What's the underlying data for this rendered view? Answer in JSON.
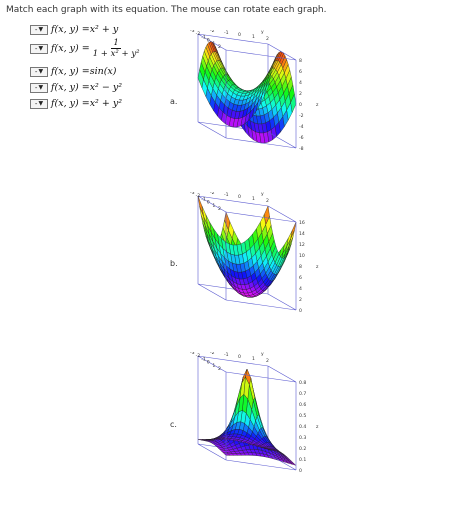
{
  "instructions": "Match each graph with its equation. The mouse can rotate each graph.",
  "dropdown_value": "-",
  "equations": [
    {
      "lhs": "f(x, y) = ",
      "rhs": "x² + y",
      "fraction": false
    },
    {
      "lhs": "f(x, y) = ",
      "numerator": "1",
      "denominator": "1 + x² + y²",
      "fraction": true
    },
    {
      "lhs": "f(x, y) = ",
      "rhs": "sin(x)",
      "fraction": false
    },
    {
      "lhs": "f(x, y) = ",
      "rhs": "x² − y²",
      "fraction": false
    },
    {
      "lhs": "f(x, y) = ",
      "rhs": "x² + y²",
      "fraction": false
    }
  ],
  "graphs": [
    {
      "label": "a.",
      "surface": "saddle",
      "back_ticks": [
        "3",
        "-2",
        "-1",
        "0",
        "1",
        "2"
      ],
      "left_ticks": [
        "2",
        "1",
        "0",
        "-1",
        "-2",
        "-3"
      ],
      "x_label": "x",
      "y_label": "y",
      "z_label": "z",
      "z_ticks": [
        "8",
        "6",
        "4",
        "2",
        "0",
        "-2",
        "-4",
        "-6",
        "-8"
      ]
    },
    {
      "label": "b.",
      "surface": "paraboloid",
      "back_ticks": [
        "-3",
        "-2",
        "-1",
        "0",
        "1",
        "2"
      ],
      "left_ticks": [
        "2",
        "1",
        "0",
        "-1",
        "-2",
        "-3"
      ],
      "x_label": "x",
      "y_label": "y",
      "z_label": "z",
      "z_ticks": [
        "16",
        "14",
        "12",
        "10",
        "8",
        "6",
        "4",
        "2",
        "0"
      ]
    },
    {
      "label": "c.",
      "surface": "bump",
      "back_ticks": [
        "-3",
        "-2",
        "-1",
        "0",
        "1",
        "2"
      ],
      "left_ticks": [
        "2",
        "1",
        "0",
        "-1",
        "-2",
        "-3"
      ],
      "x_label": "x",
      "y_label": "y",
      "z_label": "z",
      "z_ticks": [
        "0.8",
        "0.7",
        "0.6",
        "0.5",
        "0.4",
        "0.3",
        "0.2",
        "0.1",
        "0"
      ]
    }
  ]
}
